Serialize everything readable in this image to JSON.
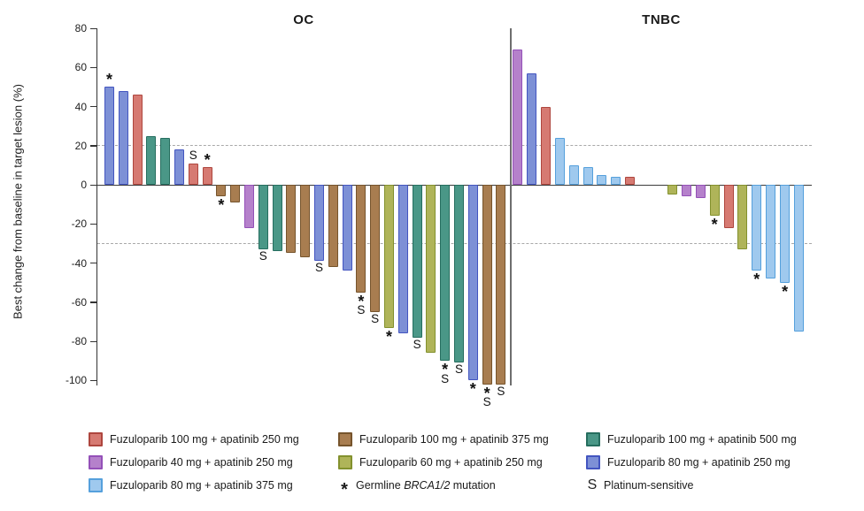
{
  "chart_data": {
    "type": "bar",
    "subtype": "waterfall",
    "ylabel": "Best change from baseline in target lesion (%)",
    "ylim": [
      -105,
      80
    ],
    "yticks": [
      80,
      60,
      40,
      20,
      0,
      -20,
      -40,
      -60,
      -80,
      -100
    ],
    "reference_lines": [
      20,
      -30
    ],
    "grid": "off",
    "legend_position": "bottom",
    "groups": {
      "fz100_ap250": {
        "label": "Fuzuloparib 100 mg + apatinib 250 mg",
        "fill": "#d67a72",
        "stroke": "#ae463e"
      },
      "fz100_ap375": {
        "label": "Fuzuloparib 100 mg + apatinib 375 mg",
        "fill": "#a87d50",
        "stroke": "#76542c"
      },
      "fz100_ap500": {
        "label": "Fuzuloparib 100 mg + apatinib 500 mg",
        "fill": "#4a9787",
        "stroke": "#266e5f"
      },
      "fz40_ap250": {
        "label": "Fuzuloparib 40 mg + apatinib 250 mg",
        "fill": "#b581cb",
        "stroke": "#9450b8"
      },
      "fz60_ap250": {
        "label": "Fuzuloparib 60 mg + apatinib 250 mg",
        "fill": "#afb459",
        "stroke": "#83912e"
      },
      "fz80_ap250": {
        "label": "Fuzuloparib 80 mg + apatinib 250 mg",
        "fill": "#7d90d6",
        "stroke": "#4355c0"
      },
      "fz80_ap375": {
        "label": "Fuzuloparib 80 mg + apatinib 375 mg",
        "fill": "#9fc9ee",
        "stroke": "#55a0dc"
      }
    },
    "panels": [
      {
        "title": "OC",
        "bars": [
          {
            "group": "fz80_ap250",
            "value": 50,
            "markers": [
              "*"
            ]
          },
          {
            "group": "fz80_ap250",
            "value": 48,
            "markers": []
          },
          {
            "group": "fz100_ap250",
            "value": 46,
            "markers": []
          },
          {
            "group": "fz100_ap500",
            "value": 25,
            "markers": []
          },
          {
            "group": "fz100_ap500",
            "value": 24,
            "markers": []
          },
          {
            "group": "fz80_ap250",
            "value": 18,
            "markers": []
          },
          {
            "group": "fz100_ap250",
            "value": 11,
            "markers": [
              "S"
            ]
          },
          {
            "group": "fz100_ap250",
            "value": 9,
            "markers": [
              "*"
            ]
          },
          {
            "group": "fz100_ap375",
            "value": -6,
            "markers": [
              "*"
            ]
          },
          {
            "group": "fz100_ap375",
            "value": -9,
            "markers": []
          },
          {
            "group": "fz40_ap250",
            "value": -22,
            "markers": []
          },
          {
            "group": "fz100_ap500",
            "value": -33,
            "markers": [
              "S"
            ]
          },
          {
            "group": "fz100_ap500",
            "value": -34,
            "markers": []
          },
          {
            "group": "fz100_ap375",
            "value": -35,
            "markers": []
          },
          {
            "group": "fz100_ap375",
            "value": -37,
            "markers": []
          },
          {
            "group": "fz80_ap250",
            "value": -39,
            "markers": [
              "S"
            ]
          },
          {
            "group": "fz100_ap375",
            "value": -42,
            "markers": []
          },
          {
            "group": "fz80_ap250",
            "value": -44,
            "markers": []
          },
          {
            "group": "fz100_ap375",
            "value": -55,
            "markers": [
              "*",
              "S"
            ]
          },
          {
            "group": "fz100_ap375",
            "value": -65,
            "markers": [
              "S"
            ]
          },
          {
            "group": "fz60_ap250",
            "value": -73,
            "markers": [
              "*"
            ]
          },
          {
            "group": "fz80_ap250",
            "value": -76,
            "markers": []
          },
          {
            "group": "fz100_ap500",
            "value": -78,
            "markers": [
              "S"
            ]
          },
          {
            "group": "fz60_ap250",
            "value": -86,
            "markers": []
          },
          {
            "group": "fz100_ap500",
            "value": -90,
            "markers": [
              "*",
              "S"
            ]
          },
          {
            "group": "fz100_ap500",
            "value": -91,
            "markers": [
              "S"
            ]
          },
          {
            "group": "fz80_ap250",
            "value": -100,
            "markers": [
              "*"
            ]
          },
          {
            "group": "fz100_ap375",
            "value": -102,
            "markers": [
              "*",
              "S"
            ]
          },
          {
            "group": "fz100_ap375",
            "value": -102,
            "markers": [
              "S"
            ]
          }
        ]
      },
      {
        "title": "TNBC",
        "bars": [
          {
            "group": "fz40_ap250",
            "value": 69,
            "markers": []
          },
          {
            "group": "fz80_ap250",
            "value": 57,
            "markers": []
          },
          {
            "group": "fz100_ap250",
            "value": 40,
            "markers": []
          },
          {
            "group": "fz80_ap375",
            "value": 24,
            "markers": []
          },
          {
            "group": "fz80_ap375",
            "value": 10,
            "markers": []
          },
          {
            "group": "fz80_ap375",
            "value": 9,
            "markers": []
          },
          {
            "group": "fz80_ap375",
            "value": 5,
            "markers": []
          },
          {
            "group": "fz80_ap375",
            "value": 4,
            "markers": []
          },
          {
            "group": "fz100_ap250",
            "value": 4,
            "markers": []
          },
          {
            "group": null,
            "value": 0,
            "markers": []
          },
          {
            "group": null,
            "value": 0,
            "markers": []
          },
          {
            "group": "fz60_ap250",
            "value": -5,
            "markers": []
          },
          {
            "group": "fz40_ap250",
            "value": -6,
            "markers": []
          },
          {
            "group": "fz40_ap250",
            "value": -7,
            "markers": []
          },
          {
            "group": "fz60_ap250",
            "value": -16,
            "markers": [
              "*"
            ]
          },
          {
            "group": "fz100_ap250",
            "value": -22,
            "markers": []
          },
          {
            "group": "fz60_ap250",
            "value": -33,
            "markers": []
          },
          {
            "group": "fz80_ap375",
            "value": -44,
            "markers": [
              "*"
            ]
          },
          {
            "group": "fz80_ap375",
            "value": -48,
            "markers": []
          },
          {
            "group": "fz80_ap375",
            "value": -50,
            "markers": [
              "*"
            ]
          },
          {
            "group": "fz80_ap375",
            "value": -75,
            "markers": []
          }
        ]
      }
    ],
    "legend": {
      "columns": [
        {
          "items": [
            {
              "type": "swatch",
              "group": "fz100_ap250"
            },
            {
              "type": "swatch",
              "group": "fz40_ap250"
            },
            {
              "type": "swatch",
              "group": "fz80_ap375"
            }
          ]
        },
        {
          "items": [
            {
              "type": "swatch",
              "group": "fz100_ap375"
            },
            {
              "type": "swatch",
              "group": "fz60_ap250"
            },
            {
              "type": "symbol",
              "symbol": "*",
              "label_prefix": "Germline ",
              "label_italic": "BRCA1/2",
              "label_suffix": " mutation"
            }
          ]
        },
        {
          "items": [
            {
              "type": "swatch",
              "group": "fz100_ap500"
            },
            {
              "type": "swatch",
              "group": "fz80_ap250"
            },
            {
              "type": "symbol",
              "symbol": "S",
              "label": "Platinum-sensitive"
            }
          ]
        }
      ]
    }
  }
}
